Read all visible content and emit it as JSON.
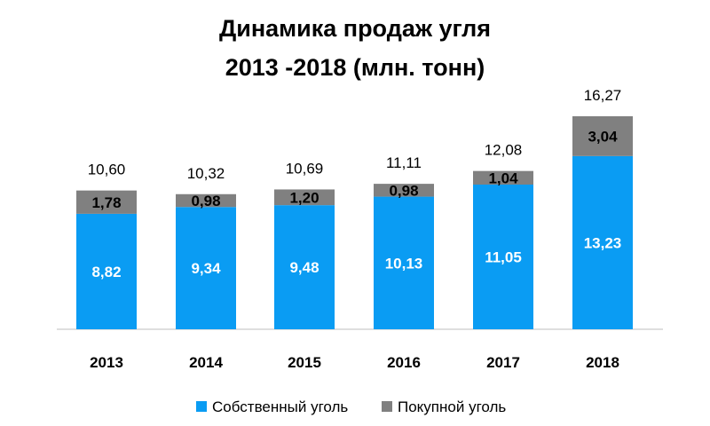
{
  "chart_data": {
    "type": "bar",
    "stacked": true,
    "title": [
      "Динамика продаж угля",
      "2013 -2018 (млн. тонн)"
    ],
    "categories": [
      "2013",
      "2014",
      "2015",
      "2016",
      "2017",
      "2018"
    ],
    "series": [
      {
        "name": "Собственный уголь",
        "color": "#0a9cf3",
        "values": [
          8.82,
          9.34,
          9.48,
          10.13,
          11.05,
          13.23
        ],
        "labels": [
          "8,82",
          "9,34",
          "9,48",
          "10,13",
          "11,05",
          "13,23"
        ]
      },
      {
        "name": "Покупной уголь",
        "color": "#808080",
        "values": [
          1.78,
          0.98,
          1.2,
          0.98,
          1.04,
          3.04
        ],
        "labels": [
          "1,78",
          "0,98",
          "1,20",
          "0,98",
          "1,04",
          "3,04"
        ]
      }
    ],
    "totals": [
      10.6,
      10.32,
      10.69,
      11.11,
      12.08,
      16.27
    ],
    "total_labels": [
      "10,60",
      "10,32",
      "10,69",
      "11,11",
      "12,08",
      "16,27"
    ],
    "ylim": [
      0,
      16.27
    ],
    "grid": false,
    "legend_position": "bottom"
  }
}
